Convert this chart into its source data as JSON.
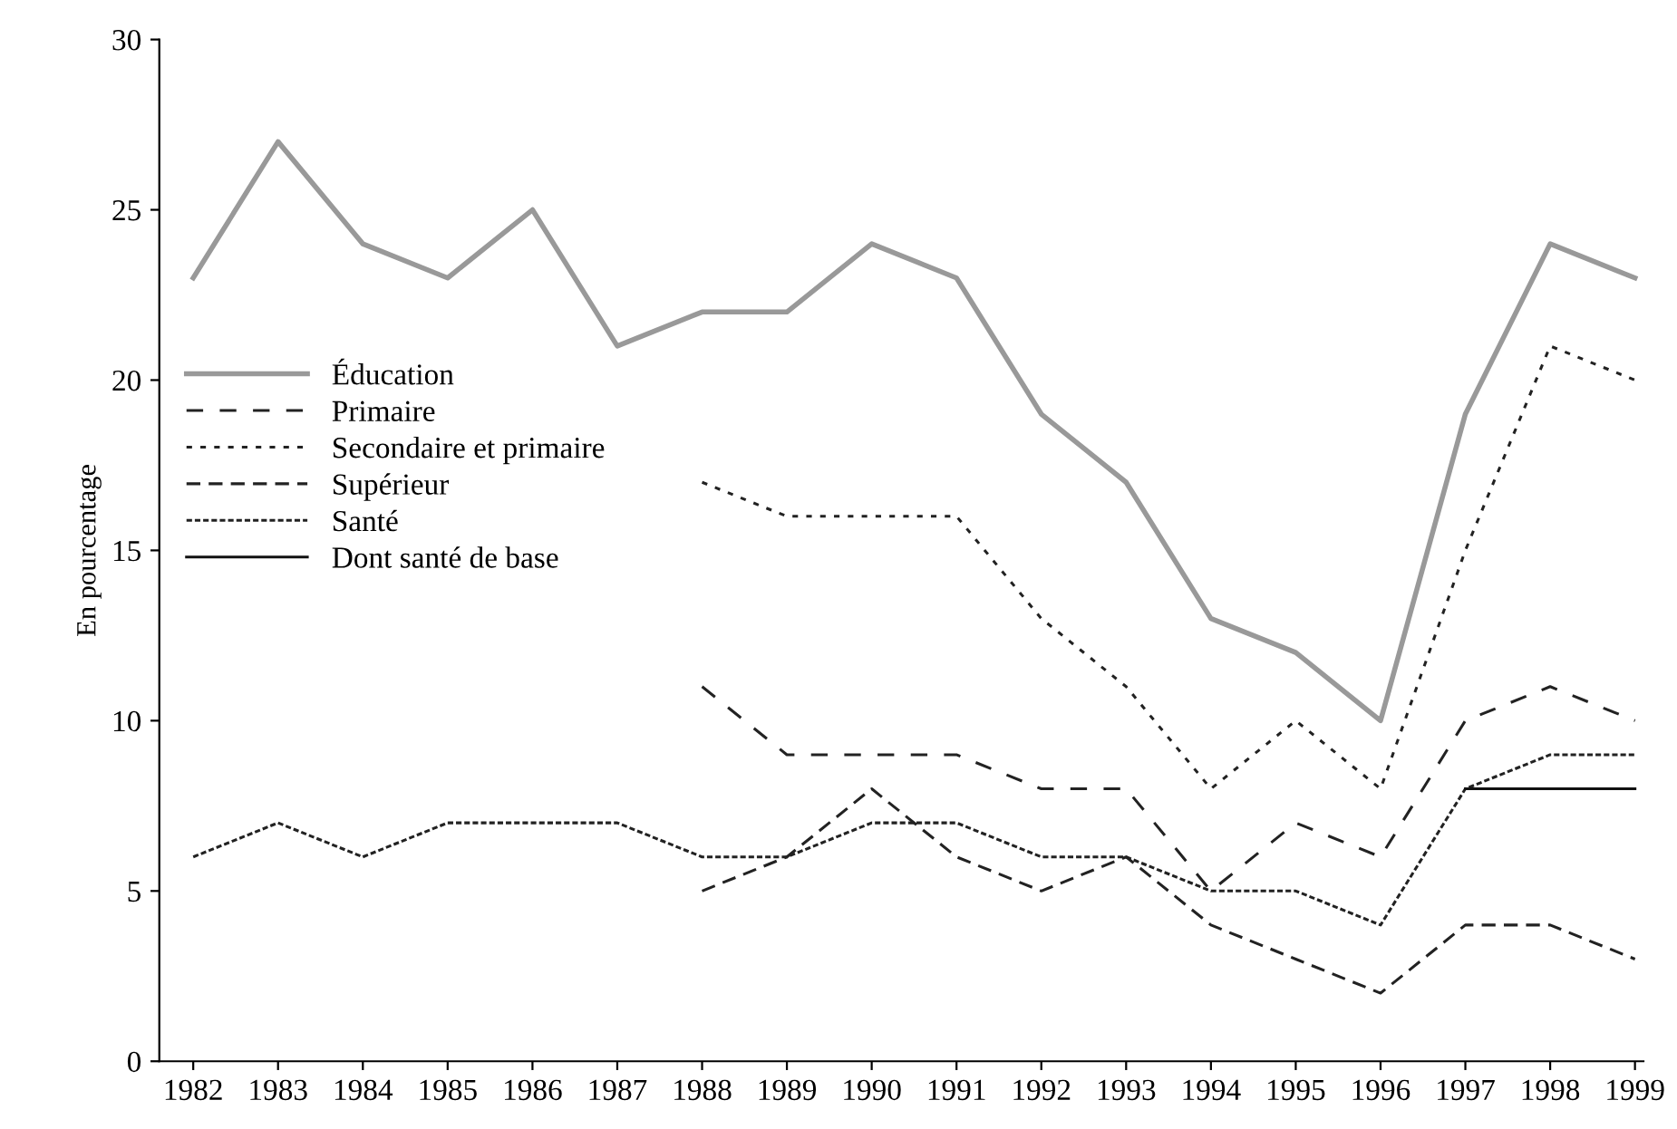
{
  "chart_data": {
    "type": "line",
    "ylabel": "En pourcentage",
    "x": [
      1982,
      1983,
      1984,
      1985,
      1986,
      1987,
      1988,
      1989,
      1990,
      1991,
      1992,
      1993,
      1994,
      1995,
      1996,
      1997,
      1998,
      1999
    ],
    "xlim": [
      1981.6,
      1999.1
    ],
    "xticks": [
      1982,
      1983,
      1984,
      1985,
      1986,
      1987,
      1988,
      1989,
      1990,
      1991,
      1992,
      1993,
      1994,
      1995,
      1996,
      1997,
      1998,
      1999
    ],
    "ylim": [
      0,
      30
    ],
    "yticks": [
      0,
      5,
      10,
      15,
      20,
      25,
      30
    ],
    "grid": false,
    "legend": "left",
    "marker": "none",
    "series": [
      {
        "name": "Éducation",
        "color": "#999999",
        "line_style": "solid",
        "values": [
          23,
          27,
          24,
          23,
          25,
          21,
          22,
          22,
          24,
          23,
          19,
          17,
          13,
          12,
          10,
          19,
          24,
          23
        ]
      },
      {
        "name": "Primaire",
        "color": "#222222",
        "line_style": "dashed",
        "values": [
          null,
          null,
          null,
          null,
          null,
          null,
          11,
          9,
          9,
          9,
          8,
          8,
          5,
          7,
          6,
          10,
          11,
          10
        ]
      },
      {
        "name": "Secondaire et primaire",
        "color": "#222222",
        "line_style": "dotted",
        "values": [
          null,
          null,
          null,
          null,
          null,
          null,
          17,
          16,
          16,
          16,
          13,
          11,
          8,
          10,
          8,
          15,
          21,
          20
        ]
      },
      {
        "name": "Supérieur",
        "color": "#222222",
        "line_style": "dashed",
        "values": [
          null,
          null,
          null,
          null,
          null,
          null,
          5,
          6,
          8,
          6,
          5,
          6,
          4,
          3,
          2,
          4,
          4,
          3
        ]
      },
      {
        "name": "Santé",
        "color": "#222222",
        "line_style": "dotted",
        "values": [
          6,
          7,
          6,
          7,
          7,
          7,
          6,
          6,
          7,
          7,
          6,
          6,
          5,
          5,
          4,
          8,
          9,
          9
        ]
      },
      {
        "name": "Dont santé de base",
        "color": "#111111",
        "line_style": "solid",
        "values": [
          null,
          null,
          null,
          null,
          null,
          null,
          null,
          null,
          null,
          null,
          null,
          null,
          null,
          null,
          null,
          8,
          8,
          8
        ]
      }
    ]
  }
}
